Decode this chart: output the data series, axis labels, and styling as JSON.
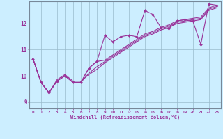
{
  "xlabel": "Windchill (Refroidissement éolien,°C)",
  "bg_color": "#cceeff",
  "line_color": "#993399",
  "xlim": [
    -0.5,
    23.5
  ],
  "ylim": [
    8.75,
    12.85
  ],
  "xticks": [
    0,
    1,
    2,
    3,
    4,
    5,
    6,
    7,
    8,
    9,
    10,
    11,
    12,
    13,
    14,
    15,
    16,
    17,
    18,
    19,
    20,
    21,
    22,
    23
  ],
  "yticks": [
    9,
    10,
    11,
    12
  ],
  "grid_color": "#99bbcc",
  "series": [
    [
      10.65,
      9.75,
      9.35,
      9.8,
      10.0,
      9.75,
      9.75,
      10.3,
      10.55,
      11.55,
      11.3,
      11.5,
      11.55,
      11.5,
      12.5,
      12.35,
      11.85,
      11.8,
      12.1,
      12.15,
      12.1,
      11.2,
      12.75,
      12.7
    ],
    [
      10.65,
      9.75,
      9.35,
      9.8,
      10.0,
      9.75,
      9.75,
      10.3,
      10.55,
      10.6,
      10.8,
      11.0,
      11.2,
      11.4,
      11.6,
      11.7,
      11.85,
      11.95,
      12.1,
      12.15,
      12.2,
      12.25,
      12.6,
      12.7
    ],
    [
      10.65,
      9.75,
      9.35,
      9.8,
      10.0,
      9.75,
      9.75,
      10.1,
      10.35,
      10.55,
      10.75,
      10.95,
      11.15,
      11.35,
      11.55,
      11.65,
      11.8,
      11.9,
      12.05,
      12.1,
      12.15,
      12.2,
      12.55,
      12.65
    ],
    [
      10.65,
      9.75,
      9.35,
      9.85,
      10.05,
      9.8,
      9.8,
      10.05,
      10.25,
      10.5,
      10.7,
      10.9,
      11.1,
      11.3,
      11.5,
      11.6,
      11.75,
      11.85,
      12.0,
      12.05,
      12.1,
      12.15,
      12.5,
      12.6
    ]
  ]
}
